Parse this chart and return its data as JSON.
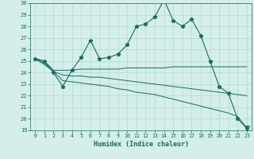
{
  "xlabel": "Humidex (Indice chaleur)",
  "bg_color": "#d4eeeb",
  "grid_color": "#b4d8d4",
  "line_color": "#1a6b5a",
  "x": [
    0,
    1,
    2,
    3,
    4,
    5,
    6,
    7,
    8,
    9,
    10,
    11,
    12,
    13,
    14,
    15,
    16,
    17,
    18,
    19,
    20,
    21,
    22,
    23
  ],
  "line1": [
    25.2,
    25.0,
    24.0,
    22.8,
    24.2,
    25.3,
    26.8,
    25.2,
    25.3,
    25.6,
    26.4,
    28.0,
    28.2,
    28.8,
    30.3,
    28.5,
    28.0,
    28.6,
    27.2,
    25.0,
    22.8,
    22.2,
    20.0,
    19.2
  ],
  "line2": [
    25.2,
    25.0,
    24.2,
    24.2,
    24.2,
    24.3,
    24.3,
    24.3,
    24.3,
    24.3,
    24.4,
    24.4,
    24.4,
    24.4,
    24.4,
    24.5,
    24.5,
    24.5,
    24.5,
    24.5,
    24.5,
    24.5,
    24.5,
    24.5
  ],
  "line3": [
    25.2,
    24.8,
    24.1,
    23.8,
    23.7,
    23.7,
    23.6,
    23.6,
    23.5,
    23.4,
    23.3,
    23.2,
    23.1,
    23.0,
    22.9,
    22.8,
    22.7,
    22.6,
    22.5,
    22.4,
    22.3,
    22.2,
    22.1,
    22.0
  ],
  "line4_x": [
    0,
    1,
    2,
    3,
    4,
    5,
    6,
    7,
    8,
    9,
    10,
    11,
    12,
    13,
    14,
    15,
    16,
    17,
    18,
    19,
    20,
    21,
    22,
    23
  ],
  "line4": [
    25.2,
    24.7,
    24.1,
    23.3,
    23.2,
    23.1,
    23.0,
    22.9,
    22.8,
    22.6,
    22.5,
    22.3,
    22.2,
    22.1,
    21.9,
    21.7,
    21.5,
    21.3,
    21.1,
    20.9,
    20.7,
    20.5,
    20.2,
    19.2
  ],
  "ylim": [
    19,
    30
  ],
  "xlim": [
    -0.5,
    23.5
  ],
  "yticks": [
    19,
    20,
    21,
    22,
    23,
    24,
    25,
    26,
    27,
    28,
    29,
    30
  ],
  "xticks": [
    0,
    1,
    2,
    3,
    4,
    5,
    6,
    7,
    8,
    9,
    10,
    11,
    12,
    13,
    14,
    15,
    16,
    17,
    18,
    19,
    20,
    21,
    22,
    23
  ]
}
